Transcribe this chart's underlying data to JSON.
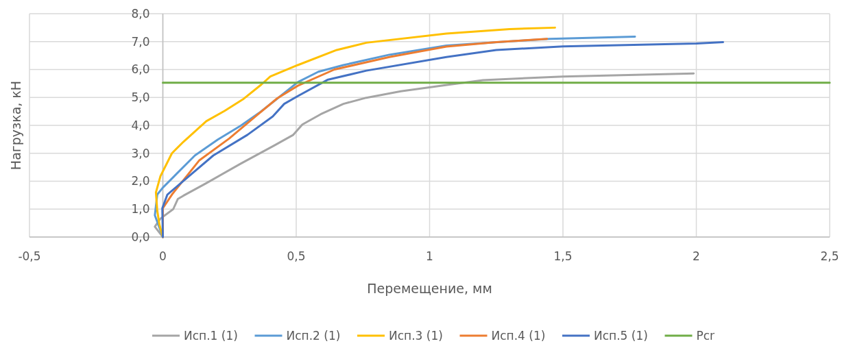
{
  "chart_data": {
    "type": "line",
    "xlabel": "Перемещение, мм",
    "ylabel": "Нагрузка, кН",
    "xlim": [
      -0.5,
      2.5
    ],
    "xticks": [
      {
        "value": -0.5,
        "label": "-0,5"
      },
      0,
      {
        "value": 0.5,
        "label": "0,5"
      },
      1,
      {
        "value": 1.5,
        "label": "1,5"
      },
      2,
      {
        "value": 2.5,
        "label": "2,5"
      }
    ],
    "ylim": [
      0,
      8
    ],
    "yticks": [
      {
        "value": 0,
        "label": "0,0"
      },
      {
        "value": 1,
        "label": "1,0"
      },
      {
        "value": 2,
        "label": "2,0"
      },
      {
        "value": 3,
        "label": "3,0"
      },
      {
        "value": 4,
        "label": "4,0"
      },
      {
        "value": 5,
        "label": "5,0"
      },
      {
        "value": 6,
        "label": "6,0"
      },
      {
        "value": 7,
        "label": "7,0"
      },
      {
        "value": 8,
        "label": "8,0"
      }
    ],
    "grid": true,
    "legend": "bottom",
    "marker": "none",
    "line_style": "solid",
    "series": [
      {
        "name": "Исп.1 (1)",
        "color": "#a5a5a5",
        "x": [
          0,
          -0.03,
          -0.009,
          0.039,
          0.056,
          0.077,
          0.163,
          0.292,
          0.42,
          0.489,
          0.523,
          0.592,
          0.677,
          0.763,
          0.892,
          1.06,
          1.2,
          1.5,
          1.99
        ],
        "values": [
          0,
          0.37,
          0.66,
          1.0,
          1.36,
          1.48,
          1.93,
          2.63,
          3.29,
          3.66,
          4.03,
          4.4,
          4.77,
          4.99,
          5.22,
          5.44,
          5.62,
          5.75,
          5.86
        ]
      },
      {
        "name": "Исп.2 (1)",
        "color": "#5b9bd5",
        "x": [
          0,
          -0.03,
          -0.021,
          0,
          0.051,
          0.12,
          0.206,
          0.292,
          0.36,
          0.42,
          0.506,
          0.583,
          0.677,
          0.849,
          1.063,
          1.45,
          1.77
        ],
        "values": [
          0,
          0.78,
          1.52,
          1.77,
          2.26,
          2.92,
          3.49,
          3.99,
          4.44,
          4.89,
          5.55,
          5.92,
          6.16,
          6.53,
          6.86,
          7.1,
          7.18
        ]
      },
      {
        "name": "Исп.3 (1)",
        "color": "#ffc000",
        "x": [
          0,
          -0.013,
          -0.021,
          -0.026,
          -0.009,
          0.034,
          0.077,
          0.163,
          0.232,
          0.3,
          0.369,
          0.403,
          0.506,
          0.652,
          0.763,
          1.063,
          1.3,
          1.47
        ],
        "values": [
          0,
          0.45,
          0.95,
          1.6,
          2.18,
          3.0,
          3.41,
          4.15,
          4.52,
          4.93,
          5.46,
          5.75,
          6.16,
          6.7,
          6.96,
          7.29,
          7.45,
          7.5
        ]
      },
      {
        "name": "Исп.4 (1)",
        "color": "#ed7d31",
        "x": [
          0,
          0,
          0.034,
          0.137,
          0.249,
          0.352,
          0.429,
          0.506,
          0.643,
          0.849,
          1.063,
          1.25,
          1.44
        ],
        "values": [
          0,
          1.03,
          1.52,
          2.75,
          3.53,
          4.36,
          4.97,
          5.42,
          6.0,
          6.45,
          6.82,
          6.98,
          7.1
        ]
      },
      {
        "name": "Исп.5 (1)",
        "color": "#4472c4",
        "x": [
          0,
          -0.002,
          0.017,
          0.077,
          0.189,
          0.317,
          0.412,
          0.455,
          0.506,
          0.617,
          0.763,
          1.063,
          1.25,
          1.5,
          2.0,
          2.1
        ],
        "values": [
          0,
          1.03,
          1.52,
          2.01,
          2.92,
          3.66,
          4.32,
          4.77,
          5.05,
          5.63,
          5.96,
          6.45,
          6.7,
          6.83,
          6.93,
          6.98
        ]
      },
      {
        "name": "Pcr",
        "color": "#70ad47",
        "x": [
          0,
          2.5
        ],
        "values": [
          5.53,
          5.53
        ]
      }
    ]
  }
}
